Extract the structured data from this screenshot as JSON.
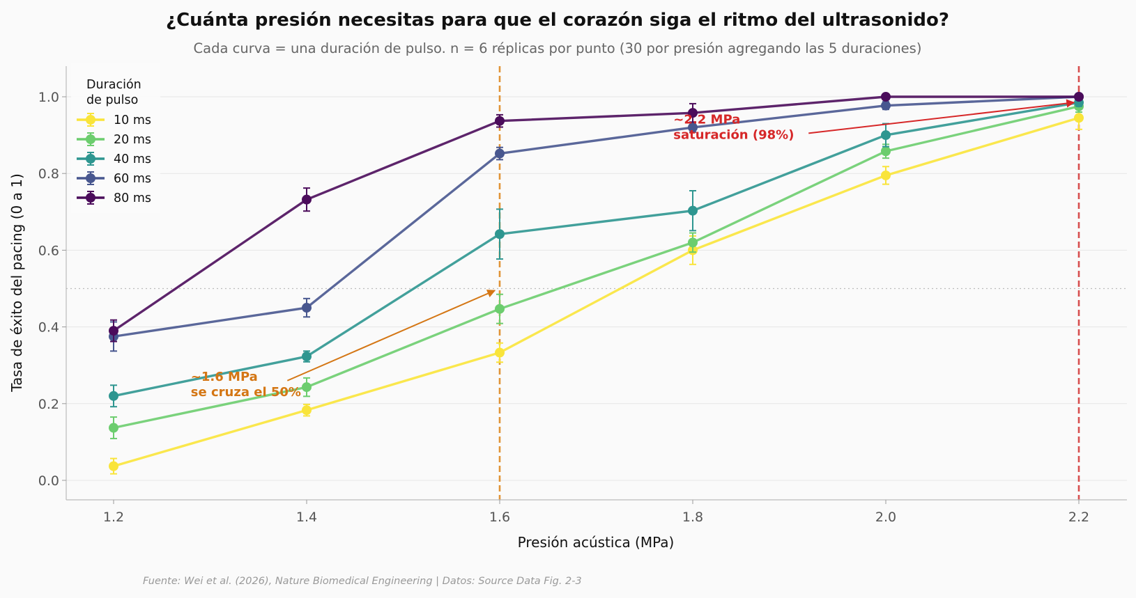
{
  "chart_data": {
    "type": "line",
    "title": "¿Cuánta presión necesitas para que el corazón siga el ritmo del ultrasonido?",
    "subtitle": "Cada curva = una duración de pulso. n = 6 réplicas por punto (30 por presión agregando las 5 duraciones)",
    "xlabel": "Presión acústica (MPa)",
    "ylabel": "Tasa de éxito del pacing (0 a 1)",
    "x": [
      1.2,
      1.4,
      1.6,
      1.8,
      2.0,
      2.2
    ],
    "x_tick_labels": [
      "1.2",
      "1.4",
      "1.6",
      "1.8",
      "2.0",
      "2.2"
    ],
    "y_tick_labels": [
      "0.0",
      "0.2",
      "0.4",
      "0.6",
      "0.8",
      "1.0"
    ],
    "xlim": [
      1.15,
      2.25
    ],
    "ylim": [
      -0.05,
      1.08
    ],
    "grid": "horizontal",
    "legend_title_lines": [
      "Duración",
      "de pulso"
    ],
    "legend_position": "top-left",
    "series": [
      {
        "name": "10 ms",
        "color": "#f9e43a",
        "values": [
          0.037,
          0.183,
          0.333,
          0.6,
          0.795,
          0.945
        ],
        "errors": [
          0.02,
          0.015,
          0.025,
          0.037,
          0.023,
          0.03
        ]
      },
      {
        "name": "20 ms",
        "color": "#6ccd6e",
        "values": [
          0.137,
          0.243,
          0.447,
          0.62,
          0.858,
          0.975
        ],
        "errors": [
          0.028,
          0.024,
          0.038,
          0.025,
          0.018,
          0.015
        ]
      },
      {
        "name": "40 ms",
        "color": "#2e9690",
        "values": [
          0.22,
          0.323,
          0.642,
          0.703,
          0.9,
          0.985
        ],
        "errors": [
          0.028,
          0.014,
          0.065,
          0.052,
          0.03,
          0.01
        ]
      },
      {
        "name": "60 ms",
        "color": "#48578f",
        "values": [
          0.375,
          0.45,
          0.852,
          0.92,
          0.977,
          1.0
        ],
        "errors": [
          0.038,
          0.024,
          0.016,
          0.012,
          0.01,
          0.004
        ]
      },
      {
        "name": "80 ms",
        "color": "#4b0c5b",
        "values": [
          0.39,
          0.732,
          0.937,
          0.958,
          1.0,
          1.0
        ],
        "errors": [
          0.028,
          0.03,
          0.016,
          0.024,
          0.0,
          0.0
        ]
      }
    ],
    "reference_lines": [
      {
        "axis": "x",
        "value": 1.6,
        "color": "#de8a22",
        "style": "dashed"
      },
      {
        "axis": "x",
        "value": 2.2,
        "color": "#d43c3c",
        "style": "dashed"
      },
      {
        "axis": "y",
        "value": 0.5,
        "color": "#bbbbbb",
        "style": "dotted"
      }
    ],
    "annotations": [
      {
        "lines": [
          "~1.6 MPa",
          "se cruza el 50%"
        ],
        "color": "#d47614",
        "text_at": [
          1.28,
          0.22
        ],
        "arrow_from": [
          1.38,
          0.26
        ],
        "arrow_to": [
          1.595,
          0.495
        ]
      },
      {
        "lines": [
          "~2.2 MPa",
          "saturación (98%)"
        ],
        "color": "#d62728",
        "text_at": [
          1.78,
          0.89
        ],
        "arrow_from": [
          1.92,
          0.905
        ],
        "arrow_to": [
          2.195,
          0.985
        ]
      }
    ],
    "source": "Fuente: Wei et al. (2026), Nature Biomedical Engineering | Datos: Source Data Fig. 2-3"
  }
}
